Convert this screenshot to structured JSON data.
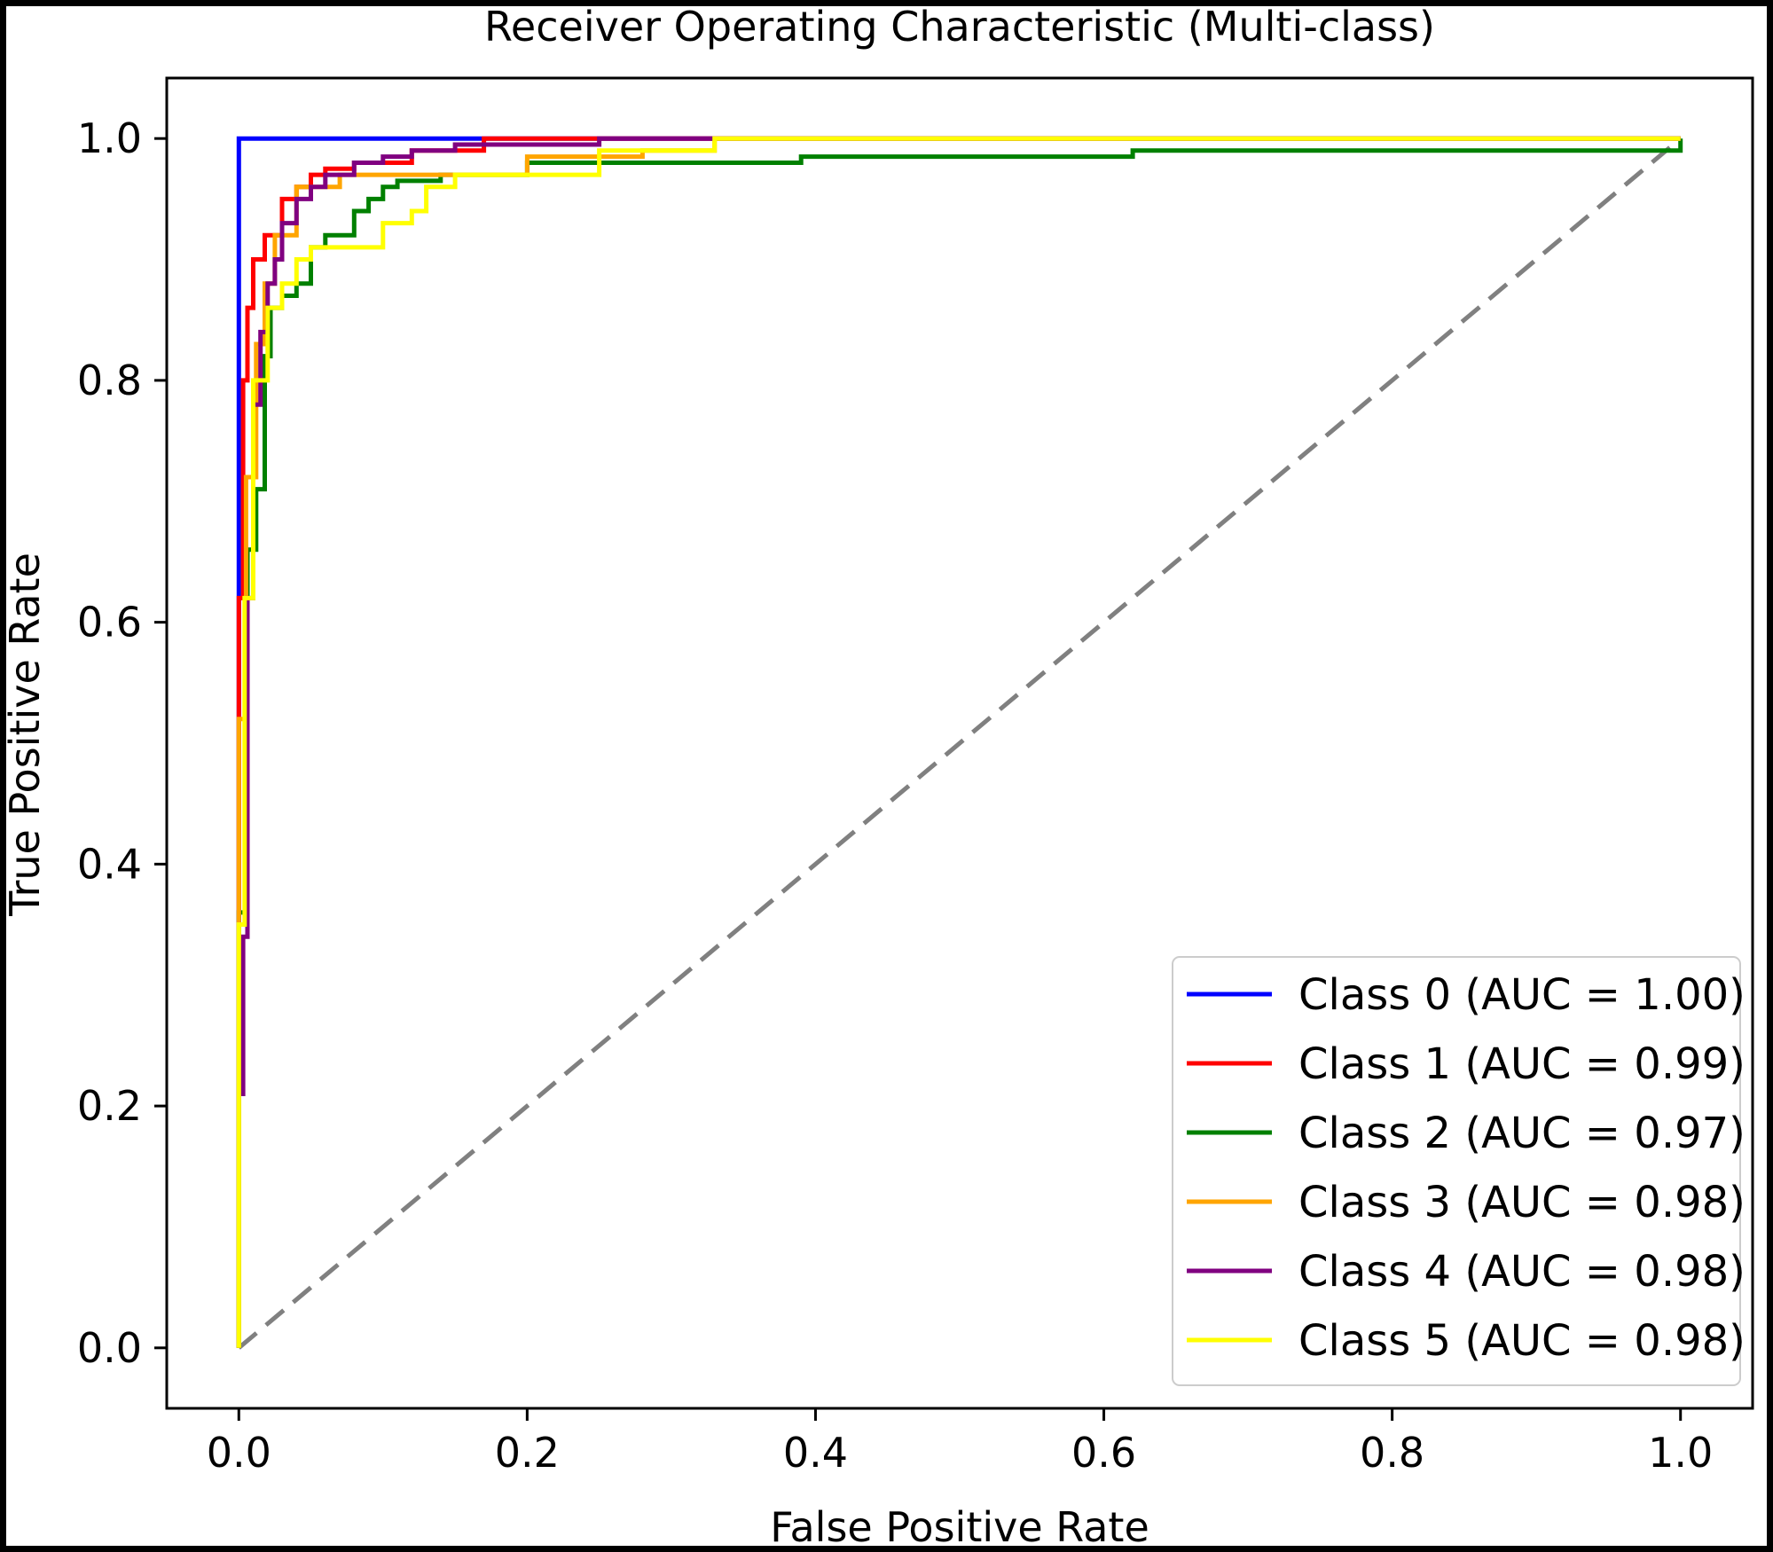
{
  "chart_data": {
    "type": "line",
    "title": "Receiver Operating Characteristic (Multi-class)",
    "xlabel": "False Positive Rate",
    "ylabel": "True Positive Rate",
    "xlim": [
      -0.05,
      1.05
    ],
    "ylim": [
      -0.05,
      1.05
    ],
    "xticks": [
      "0.0",
      "0.2",
      "0.4",
      "0.6",
      "0.8",
      "1.0"
    ],
    "yticks": [
      "0.0",
      "0.2",
      "0.4",
      "0.6",
      "0.8",
      "1.0"
    ],
    "grid": false,
    "legend_position": "lower-right",
    "diagonal": {
      "x": [
        0,
        1
      ],
      "y": [
        0,
        1
      ],
      "color": "#808080",
      "style": "dashed"
    },
    "series": [
      {
        "name": "Class 0 (AUC = 1.00)",
        "color": "#0000ff",
        "x": [
          0,
          0,
          0,
          0,
          1
        ],
        "y": [
          0,
          0.8,
          0.93,
          1.0,
          1.0
        ]
      },
      {
        "name": "Class 1 (AUC = 0.99)",
        "color": "#ff0000",
        "x": [
          0,
          0,
          0.003,
          0.003,
          0.006,
          0.006,
          0.01,
          0.01,
          0.018,
          0.018,
          0.03,
          0.03,
          0.04,
          0.04,
          0.05,
          0.05,
          0.06,
          0.06,
          0.08,
          0.08,
          0.12,
          0.12,
          0.17,
          0.17,
          0.29,
          0.29,
          1
        ],
        "y": [
          0,
          0.62,
          0.62,
          0.8,
          0.8,
          0.86,
          0.86,
          0.9,
          0.9,
          0.92,
          0.92,
          0.95,
          0.95,
          0.96,
          0.96,
          0.97,
          0.97,
          0.975,
          0.975,
          0.98,
          0.98,
          0.99,
          0.99,
          1.0,
          1.0,
          1.0,
          1.0
        ]
      },
      {
        "name": "Class 2 (AUC = 0.97)",
        "color": "#008000",
        "x": [
          0,
          0,
          0.006,
          0.006,
          0.012,
          0.012,
          0.018,
          0.018,
          0.022,
          0.022,
          0.03,
          0.03,
          0.04,
          0.04,
          0.05,
          0.05,
          0.06,
          0.06,
          0.08,
          0.08,
          0.09,
          0.09,
          0.1,
          0.1,
          0.11,
          0.11,
          0.14,
          0.14,
          0.2,
          0.2,
          0.39,
          0.39,
          0.62,
          0.62,
          1,
          1
        ],
        "y": [
          0,
          0.36,
          0.36,
          0.66,
          0.66,
          0.71,
          0.71,
          0.82,
          0.82,
          0.86,
          0.86,
          0.87,
          0.87,
          0.88,
          0.88,
          0.91,
          0.91,
          0.92,
          0.92,
          0.94,
          0.94,
          0.95,
          0.95,
          0.96,
          0.96,
          0.965,
          0.965,
          0.97,
          0.97,
          0.98,
          0.98,
          0.985,
          0.985,
          0.99,
          0.99,
          1.0
        ]
      },
      {
        "name": "Class 3 (AUC = 0.98)",
        "color": "#ffa500",
        "x": [
          0,
          0,
          0.005,
          0.005,
          0.012,
          0.012,
          0.018,
          0.018,
          0.025,
          0.025,
          0.04,
          0.04,
          0.07,
          0.07,
          0.2,
          0.2,
          0.28,
          0.28,
          0.33,
          0.33,
          1
        ],
        "y": [
          0,
          0.52,
          0.52,
          0.72,
          0.72,
          0.83,
          0.83,
          0.88,
          0.88,
          0.92,
          0.92,
          0.96,
          0.96,
          0.97,
          0.97,
          0.985,
          0.985,
          0.99,
          0.99,
          1.0,
          1.0
        ]
      },
      {
        "name": "Class 4 (AUC = 0.98)",
        "color": "#800080",
        "x": [
          0,
          0.003,
          0.003,
          0.006,
          0.006,
          0.01,
          0.01,
          0.015,
          0.015,
          0.02,
          0.02,
          0.025,
          0.025,
          0.03,
          0.03,
          0.04,
          0.04,
          0.05,
          0.05,
          0.06,
          0.06,
          0.08,
          0.08,
          0.1,
          0.1,
          0.12,
          0.12,
          0.15,
          0.15,
          0.25,
          0.25,
          0.33,
          0.33,
          1
        ],
        "y": [
          0.21,
          0.21,
          0.34,
          0.34,
          0.62,
          0.62,
          0.78,
          0.78,
          0.84,
          0.84,
          0.88,
          0.88,
          0.9,
          0.9,
          0.93,
          0.93,
          0.95,
          0.95,
          0.96,
          0.96,
          0.97,
          0.97,
          0.98,
          0.98,
          0.985,
          0.985,
          0.99,
          0.99,
          0.995,
          0.995,
          1.0,
          1.0,
          1.0,
          1.0
        ]
      },
      {
        "name": "Class 5 (AUC = 0.98)",
        "color": "#ffff00",
        "x": [
          0,
          0,
          0.004,
          0.004,
          0.01,
          0.01,
          0.02,
          0.02,
          0.03,
          0.03,
          0.04,
          0.04,
          0.05,
          0.05,
          0.1,
          0.1,
          0.12,
          0.12,
          0.13,
          0.13,
          0.15,
          0.15,
          0.25,
          0.25,
          0.33,
          0.33,
          1
        ],
        "y": [
          0,
          0.35,
          0.35,
          0.62,
          0.62,
          0.8,
          0.8,
          0.86,
          0.86,
          0.88,
          0.88,
          0.9,
          0.9,
          0.91,
          0.91,
          0.93,
          0.93,
          0.94,
          0.94,
          0.96,
          0.96,
          0.97,
          0.97,
          0.99,
          0.99,
          1.0,
          1.0
        ]
      }
    ]
  }
}
